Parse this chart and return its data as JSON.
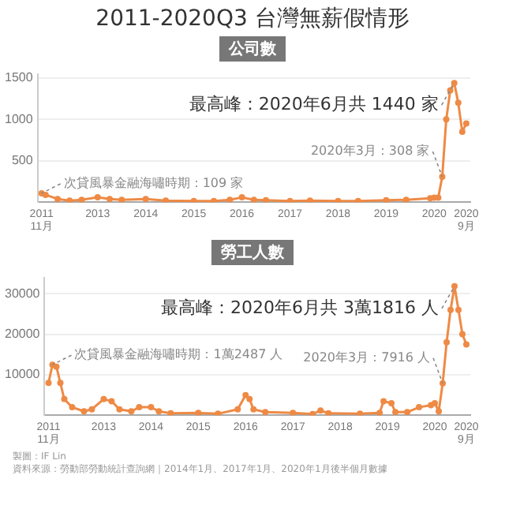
{
  "chart_data": [
    {
      "type": "line",
      "title": "2011-2020Q3 台灣無薪假情形",
      "subtitle": "公司數",
      "marker": "circle",
      "grid": "y",
      "legend": false,
      "x": [
        "2011-11",
        "2011-12",
        "2012-03",
        "2012-06",
        "2012-09",
        "2013-01",
        "2013-04",
        "2013-07",
        "2014-01",
        "2014-06",
        "2015-01",
        "2015-06",
        "2015-10",
        "2016-01",
        "2016-04",
        "2016-07",
        "2017-01",
        "2017-06",
        "2018-01",
        "2018-06",
        "2019-01",
        "2019-06",
        "2019-12",
        "2020-01",
        "2020-02",
        "2020-03",
        "2020-04",
        "2020-05",
        "2020-06",
        "2020-07",
        "2020-08",
        "2020-09"
      ],
      "series": [
        {
          "color": "#ee8a45",
          "values": [
            109,
            90,
            40,
            20,
            30,
            60,
            40,
            30,
            40,
            20,
            15,
            15,
            30,
            60,
            30,
            25,
            15,
            20,
            15,
            15,
            25,
            30,
            50,
            55,
            55,
            308,
            1000,
            1350,
            1440,
            1200,
            850,
            950
          ]
        }
      ],
      "xlim": [
        "2011-10",
        "2020-10"
      ],
      "xticks": [
        {
          "value": "2011-11",
          "label": "2011\n11月"
        },
        {
          "value": "2013-01",
          "label": "2013"
        },
        {
          "value": "2014-01",
          "label": "2014"
        },
        {
          "value": "2015-01",
          "label": "2015"
        },
        {
          "value": "2016-01",
          "label": "2016"
        },
        {
          "value": "2017-01",
          "label": "2017"
        },
        {
          "value": "2018-01",
          "label": "2018"
        },
        {
          "value": "2019-01",
          "label": "2019"
        },
        {
          "value": "2020-01",
          "label": "2020"
        },
        {
          "value": "2020-09",
          "label": "2020\n9月"
        }
      ],
      "ylim": [
        0,
        1550
      ],
      "yticks": [
        500,
        1000,
        1500
      ],
      "annotations": [
        {
          "text": "次貸風暴金融海嘯時期：109 家",
          "x": "2011-11",
          "y": 109
        },
        {
          "text": "2020年3月：308 家",
          "x": "2020-03",
          "y": 308
        },
        {
          "text": "最高峰：2020年6月共 1440 家",
          "x": "2020-06",
          "y": 1440
        }
      ]
    },
    {
      "type": "line",
      "subtitle": "勞工人數",
      "marker": "circle",
      "grid": "y",
      "legend": false,
      "x": [
        "2011-11",
        "2011-12",
        "2012-01",
        "2012-02",
        "2012-03",
        "2012-05",
        "2012-08",
        "2012-10",
        "2013-01",
        "2013-03",
        "2013-05",
        "2013-08",
        "2013-10",
        "2014-01",
        "2014-03",
        "2014-06",
        "2015-01",
        "2015-06",
        "2015-11",
        "2016-01",
        "2016-02",
        "2016-03",
        "2016-06",
        "2017-01",
        "2017-06",
        "2017-08",
        "2017-10",
        "2018-06",
        "2018-11",
        "2018-12",
        "2019-02",
        "2019-03",
        "2019-06",
        "2019-09",
        "2019-12",
        "2020-01",
        "2020-02",
        "2020-03",
        "2020-04",
        "2020-05",
        "2020-06",
        "2020-07",
        "2020-08",
        "2020-09"
      ],
      "series": [
        {
          "color": "#ee8a45",
          "values": [
            8000,
            12487,
            12000,
            8000,
            4000,
            2000,
            1000,
            1500,
            4000,
            3500,
            1500,
            1000,
            2000,
            2000,
            1000,
            500,
            600,
            400,
            1500,
            5000,
            4000,
            1500,
            800,
            600,
            300,
            1200,
            500,
            400,
            600,
            3500,
            3000,
            800,
            800,
            2000,
            2500,
            3000,
            1000,
            7916,
            18000,
            26000,
            31816,
            26000,
            20000,
            17500
          ]
        }
      ],
      "xlim": [
        "2011-10",
        "2020-10"
      ],
      "xticks": [
        {
          "value": "2011-11",
          "label": "2011\n11月"
        },
        {
          "value": "2013-01",
          "label": "2013"
        },
        {
          "value": "2014-01",
          "label": "2014"
        },
        {
          "value": "2015-01",
          "label": "2015"
        },
        {
          "value": "2016-01",
          "label": "2016"
        },
        {
          "value": "2017-01",
          "label": "2017"
        },
        {
          "value": "2018-01",
          "label": "2018"
        },
        {
          "value": "2019-01",
          "label": "2019"
        },
        {
          "value": "2020-01",
          "label": "2020"
        },
        {
          "value": "2020-09",
          "label": "2020\n9月"
        }
      ],
      "ylim": [
        0,
        34000
      ],
      "yticks": [
        10000,
        20000,
        30000
      ],
      "annotations": [
        {
          "text": "次貸風暴金融海嘯時期：1萬2487 人",
          "x": "2011-12",
          "y": 12487
        },
        {
          "text": "2020年3月：7916 人",
          "x": "2020-03",
          "y": 7916
        },
        {
          "text": "最高峰：2020年6月共 3萬1816 人",
          "x": "2020-06",
          "y": 31816
        },
        "製圖：IF Lin",
        "資料來源：勞動部勞動統計查詢網｜2014年1月、2017年1月、2020年1月後半個月數據"
      ]
    }
  ]
}
